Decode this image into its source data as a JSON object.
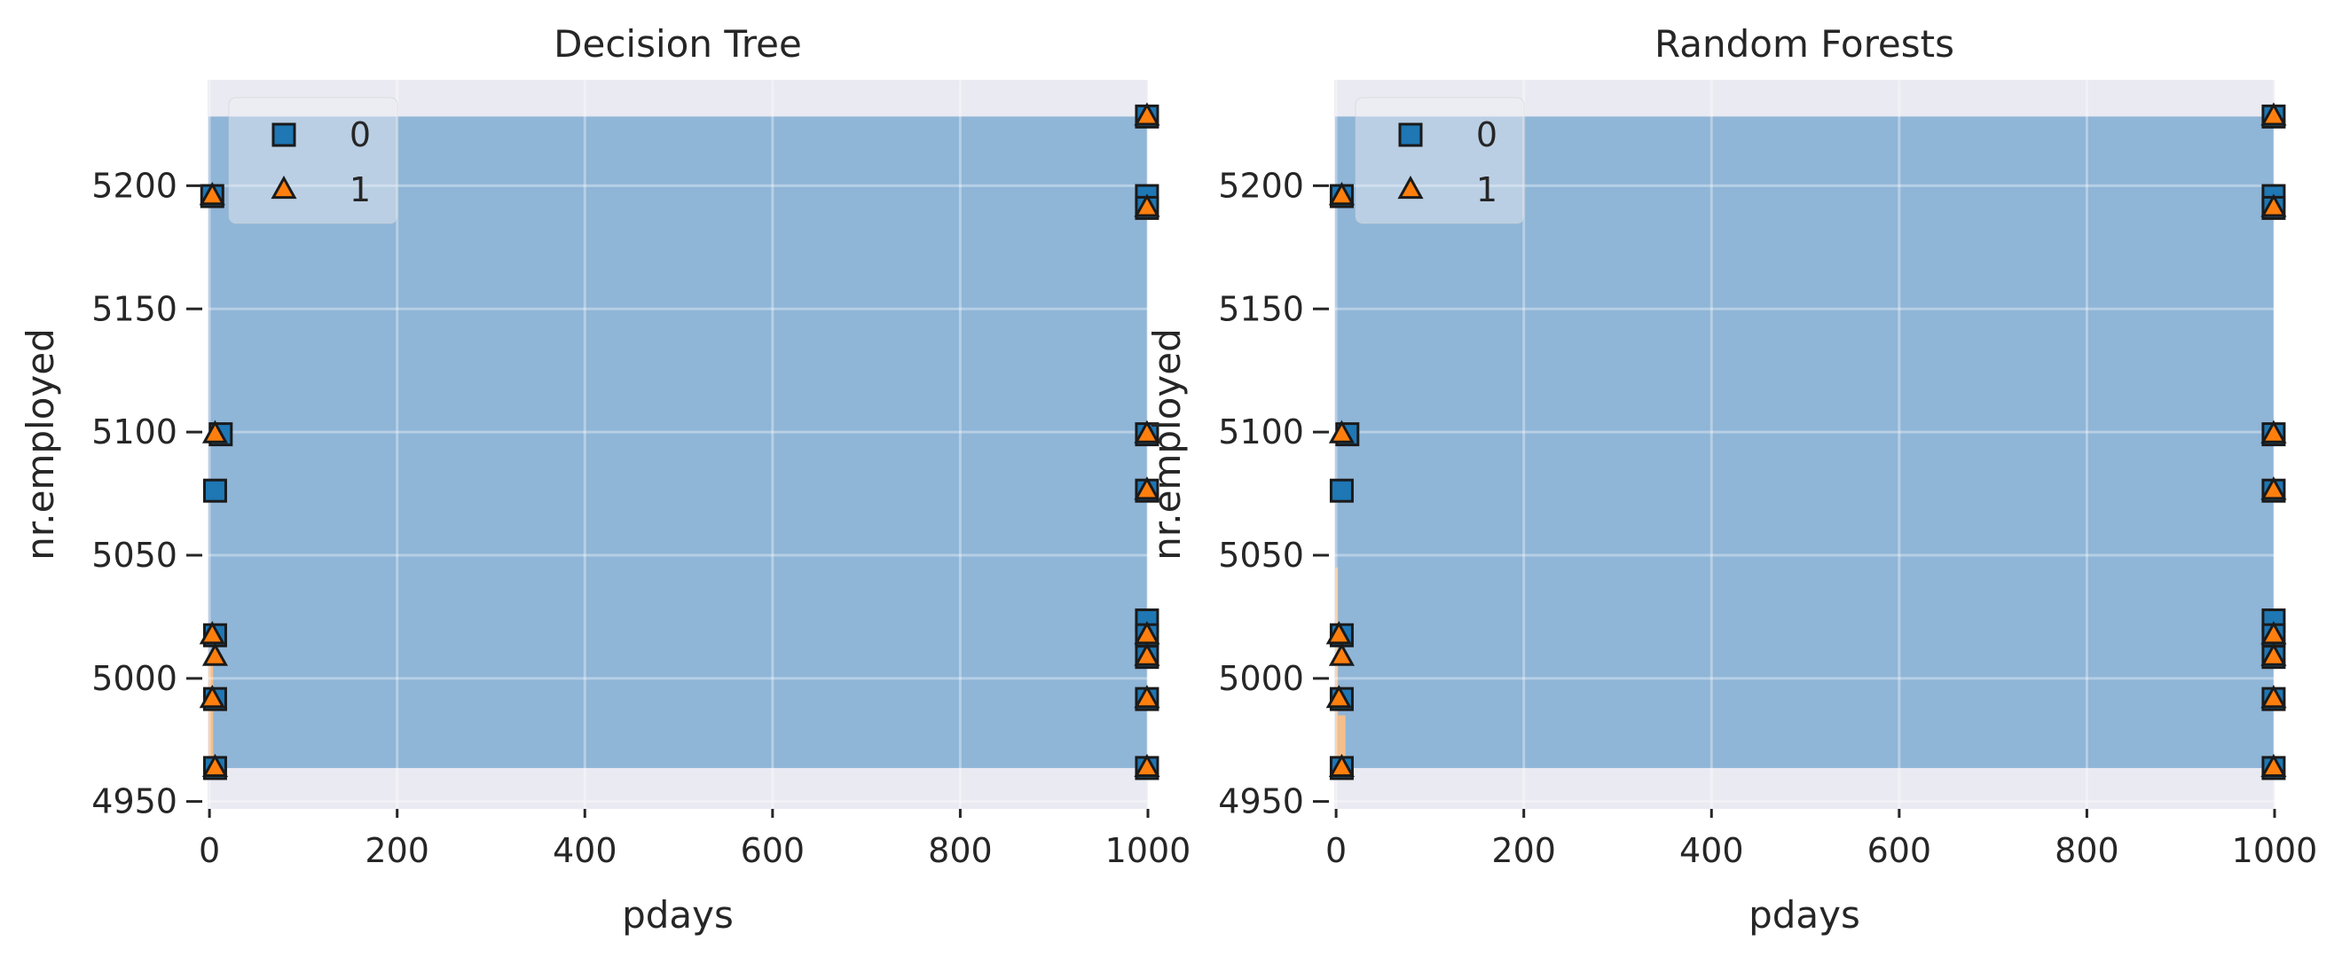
{
  "chart_data": [
    {
      "type": "scatter",
      "title": "Decision Tree",
      "xlabel": "pdays",
      "ylabel": "nr.employed",
      "xlim": [
        -2,
        1000
      ],
      "ylim": [
        4947,
        5243
      ],
      "xticks": [
        0,
        200,
        400,
        600,
        800,
        1000
      ],
      "yticks": [
        4950,
        5000,
        5050,
        5100,
        5150,
        5200
      ],
      "grid": true,
      "legend_position": "upper-left",
      "decision_regions": [
        {
          "class": "0",
          "x0": -1,
          "x1": 999,
          "y0": 4963.6,
          "y1": 5228.1
        },
        {
          "class": "1",
          "x0": -1,
          "x1": 4,
          "y0": 4963.6,
          "y1": 5010
        }
      ],
      "series": [
        {
          "name": "0",
          "marker": "square",
          "color": "#1f77b4",
          "points": [
            [
              999,
              5228.1
            ],
            [
              999,
              5195.8
            ],
            [
              999,
              5191
            ],
            [
              3,
              5195.8
            ],
            [
              12,
              5099.1
            ],
            [
              999,
              5099.1
            ],
            [
              6,
              5076.2
            ],
            [
              999,
              5076.2
            ],
            [
              999,
              5023.5
            ],
            [
              6,
              5017.5
            ],
            [
              999,
              5017.5
            ],
            [
              999,
              5008.7
            ],
            [
              6,
              4991.6
            ],
            [
              999,
              4991.6
            ],
            [
              6,
              4963.6
            ],
            [
              999,
              4963.6
            ]
          ]
        },
        {
          "name": "1",
          "marker": "triangle",
          "color": "#ff7f0e",
          "points": [
            [
              999,
              5228.1
            ],
            [
              999,
              5191
            ],
            [
              3,
              5195.8
            ],
            [
              6,
              5099.1
            ],
            [
              999,
              5099.1
            ],
            [
              999,
              5076.2
            ],
            [
              3,
              5017.5
            ],
            [
              999,
              5017.5
            ],
            [
              6,
              5008.7
            ],
            [
              999,
              5008.7
            ],
            [
              3,
              4991.6
            ],
            [
              999,
              4991.6
            ],
            [
              6,
              4963.6
            ],
            [
              999,
              4963.6
            ]
          ]
        }
      ]
    },
    {
      "type": "scatter",
      "title": "Random Forests",
      "xlabel": "pdays",
      "ylabel": "nr.employed",
      "xlim": [
        -2,
        1000
      ],
      "ylim": [
        4947,
        5243
      ],
      "xticks": [
        0,
        200,
        400,
        600,
        800,
        1000
      ],
      "yticks": [
        4950,
        5000,
        5050,
        5100,
        5150,
        5200
      ],
      "grid": true,
      "legend_position": "upper-left",
      "decision_regions": [
        {
          "class": "0",
          "x0": -1,
          "x1": 999,
          "y0": 4963.6,
          "y1": 5228.1
        },
        {
          "class": "1",
          "x0": -1,
          "x1": 2,
          "y0": 4963.6,
          "y1": 5045
        },
        {
          "class": "1",
          "x0": 2,
          "x1": 10,
          "y0": 4963.6,
          "y1": 4985
        }
      ],
      "series": [
        {
          "name": "0",
          "marker": "square",
          "color": "#1f77b4",
          "points": [
            [
              999,
              5228.1
            ],
            [
              999,
              5195.8
            ],
            [
              999,
              5191
            ],
            [
              6,
              5195.8
            ],
            [
              12,
              5099.1
            ],
            [
              999,
              5099.1
            ],
            [
              6,
              5076.2
            ],
            [
              999,
              5076.2
            ],
            [
              999,
              5023.5
            ],
            [
              6,
              5017.5
            ],
            [
              999,
              5017.5
            ],
            [
              999,
              5008.7
            ],
            [
              6,
              4991.6
            ],
            [
              999,
              4991.6
            ],
            [
              6,
              4963.6
            ],
            [
              999,
              4963.6
            ]
          ]
        },
        {
          "name": "1",
          "marker": "triangle",
          "color": "#ff7f0e",
          "points": [
            [
              999,
              5228.1
            ],
            [
              999,
              5191
            ],
            [
              6,
              5195.8
            ],
            [
              6,
              5099.1
            ],
            [
              999,
              5099.1
            ],
            [
              999,
              5076.2
            ],
            [
              3,
              5017.5
            ],
            [
              999,
              5017.5
            ],
            [
              6,
              5008.7
            ],
            [
              999,
              5008.7
            ],
            [
              3,
              4991.6
            ],
            [
              999,
              4991.6
            ],
            [
              6,
              4963.6
            ],
            [
              999,
              4963.6
            ]
          ]
        }
      ]
    }
  ],
  "colors": {
    "axes_background": "#eaeaf2",
    "grid": "#ffffff",
    "region_0": "#8fb5d7",
    "region_1": "#f5bf8c",
    "marker_edge": "#1a1a1a"
  }
}
